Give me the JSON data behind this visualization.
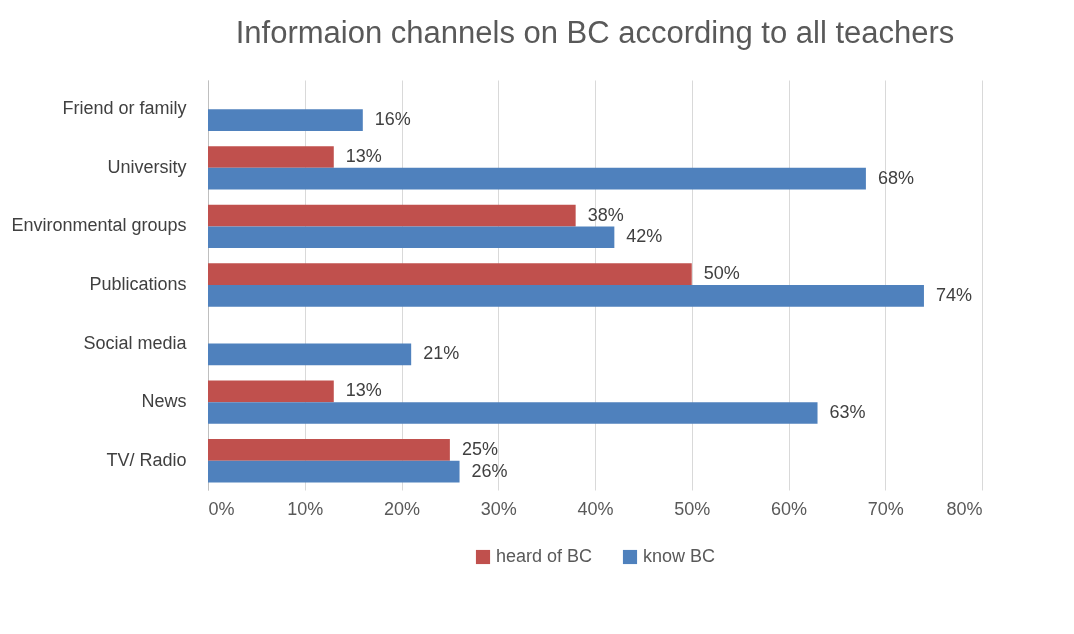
{
  "chart_data": {
    "type": "bar",
    "orientation": "horizontal",
    "title": "Informaion channels on BC according to all teachers",
    "categories": [
      "Friend or family",
      "University",
      "Environmental groups",
      "Publications",
      "Social media",
      "News",
      "TV/ Radio"
    ],
    "series": [
      {
        "name": "heard of BC",
        "color": "#c0504d",
        "values": [
          null,
          13,
          38,
          50,
          null,
          13,
          25
        ],
        "value_labels": [
          null,
          "13%",
          "38%",
          "50%",
          null,
          "13%",
          "25%"
        ]
      },
      {
        "name": "know BC",
        "color": "#4f81bd",
        "values": [
          16,
          68,
          42,
          74,
          21,
          63,
          26
        ],
        "value_labels": [
          "16%",
          "68%",
          "42%",
          "74%",
          "21%",
          "63%",
          "26%"
        ]
      }
    ],
    "xlim": [
      0,
      80
    ],
    "xticks": [
      {
        "value": 0,
        "label": "0%"
      },
      {
        "value": 10,
        "label": "10%"
      },
      {
        "value": 20,
        "label": "20%"
      },
      {
        "value": 30,
        "label": "30%"
      },
      {
        "value": 40,
        "label": "40%"
      },
      {
        "value": 50,
        "label": "50%"
      },
      {
        "value": 60,
        "label": "60%"
      },
      {
        "value": 70,
        "label": "70%"
      },
      {
        "value": 80,
        "label": "80%"
      }
    ],
    "grid": "x",
    "legend": "bottom"
  }
}
